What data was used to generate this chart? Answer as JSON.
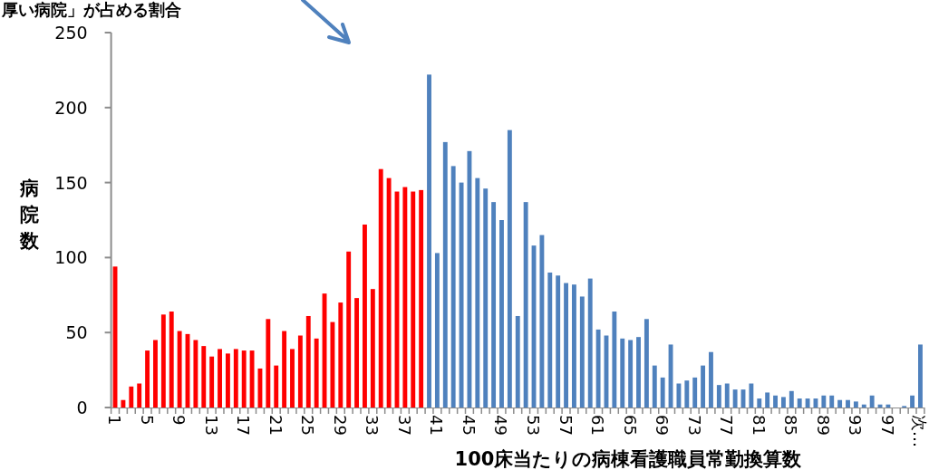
{
  "chart_data": {
    "type": "bar",
    "title": "厚い病院」が占める割合",
    "xlabel": "100床当たりの病棟看護職員常勤換算数",
    "ylabel": "病院数",
    "categories": [
      "1",
      null,
      null,
      null,
      "5",
      null,
      null,
      null,
      "9",
      null,
      null,
      null,
      "13",
      null,
      null,
      null,
      "17",
      null,
      null,
      null,
      "21",
      null,
      null,
      null,
      "25",
      null,
      null,
      null,
      "29",
      null,
      null,
      null,
      "33",
      null,
      null,
      null,
      "37",
      null,
      null,
      null,
      "41",
      null,
      null,
      null,
      "45",
      null,
      null,
      null,
      "49",
      null,
      null,
      null,
      "53",
      null,
      null,
      null,
      "57",
      null,
      null,
      null,
      "61",
      null,
      null,
      null,
      "65",
      null,
      null,
      null,
      "69",
      null,
      null,
      null,
      "73",
      null,
      null,
      null,
      "77",
      null,
      null,
      null,
      "81",
      null,
      null,
      null,
      "85",
      null,
      null,
      null,
      "89",
      null,
      null,
      null,
      "93",
      null,
      null,
      null,
      "97",
      null,
      null,
      null,
      "次…"
    ],
    "values": [
      94,
      5,
      14,
      16,
      38,
      45,
      62,
      64,
      51,
      49,
      45,
      41,
      34,
      39,
      36,
      39,
      38,
      38,
      26,
      59,
      28,
      51,
      39,
      48,
      61,
      46,
      76,
      57,
      70,
      104,
      73,
      122,
      79,
      159,
      153,
      144,
      147,
      144,
      145,
      222,
      103,
      177,
      161,
      150,
      171,
      153,
      146,
      137,
      125,
      185,
      61,
      137,
      108,
      115,
      90,
      88,
      83,
      82,
      74,
      86,
      52,
      48,
      64,
      46,
      45,
      47,
      59,
      28,
      20,
      42,
      16,
      18,
      20,
      28,
      37,
      15,
      16,
      12,
      12,
      16,
      6,
      10,
      8,
      7,
      11,
      6,
      6,
      6,
      8,
      8,
      5,
      5,
      4,
      2,
      8,
      2,
      2,
      0,
      1,
      8,
      42
    ],
    "colors": [
      "#ff0000",
      "#ff0000",
      "#ff0000",
      "#ff0000",
      "#ff0000",
      "#ff0000",
      "#ff0000",
      "#ff0000",
      "#ff0000",
      "#ff0000",
      "#ff0000",
      "#ff0000",
      "#ff0000",
      "#ff0000",
      "#ff0000",
      "#ff0000",
      "#ff0000",
      "#ff0000",
      "#ff0000",
      "#ff0000",
      "#ff0000",
      "#ff0000",
      "#ff0000",
      "#ff0000",
      "#ff0000",
      "#ff0000",
      "#ff0000",
      "#ff0000",
      "#ff0000",
      "#ff0000",
      "#ff0000",
      "#ff0000",
      "#ff0000",
      "#ff0000",
      "#ff0000",
      "#ff0000",
      "#ff0000",
      "#ff0000",
      "#ff0000",
      "#4f81bd",
      "#4f81bd",
      "#4f81bd",
      "#4f81bd",
      "#4f81bd",
      "#4f81bd",
      "#4f81bd",
      "#4f81bd",
      "#4f81bd",
      "#4f81bd",
      "#4f81bd",
      "#4f81bd",
      "#4f81bd",
      "#4f81bd",
      "#4f81bd",
      "#4f81bd",
      "#4f81bd",
      "#4f81bd",
      "#4f81bd",
      "#4f81bd",
      "#4f81bd",
      "#4f81bd",
      "#4f81bd",
      "#4f81bd",
      "#4f81bd",
      "#4f81bd",
      "#4f81bd",
      "#4f81bd",
      "#4f81bd",
      "#4f81bd",
      "#4f81bd",
      "#4f81bd",
      "#4f81bd",
      "#4f81bd",
      "#4f81bd",
      "#4f81bd",
      "#4f81bd",
      "#4f81bd",
      "#4f81bd",
      "#4f81bd",
      "#4f81bd",
      "#4f81bd",
      "#4f81bd",
      "#4f81bd",
      "#4f81bd",
      "#4f81bd",
      "#4f81bd",
      "#4f81bd",
      "#4f81bd",
      "#4f81bd",
      "#4f81bd",
      "#4f81bd",
      "#4f81bd",
      "#4f81bd",
      "#4f81bd",
      "#4f81bd",
      "#4f81bd",
      "#4f81bd",
      "#4f81bd",
      "#4f81bd",
      "#4f81bd",
      "#4f81bd"
    ],
    "ylim": [
      0,
      250
    ],
    "yticks": [
      0,
      50,
      100,
      150,
      200,
      250
    ],
    "grid": false
  }
}
